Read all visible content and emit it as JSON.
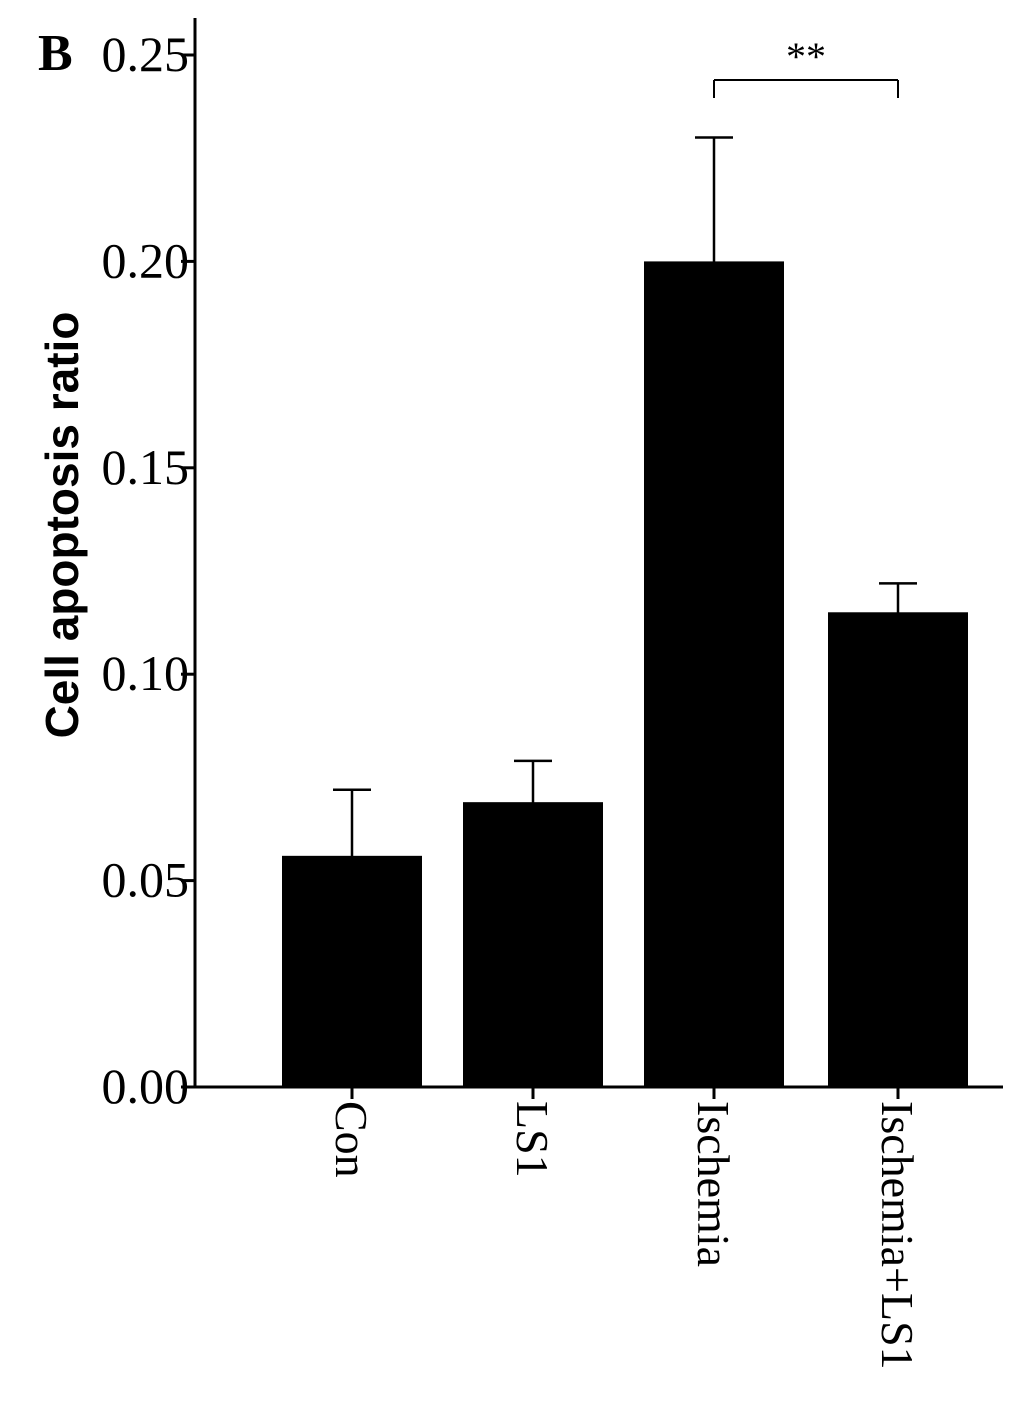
{
  "panel_label": "B",
  "chart_data": {
    "type": "bar",
    "title": "",
    "xlabel": "",
    "ylabel": "Cell apoptosis ratio",
    "ylim": [
      0,
      0.25
    ],
    "yticks": [
      "0.00",
      "0.05",
      "0.10",
      "0.15",
      "0.20",
      "0.25"
    ],
    "categories": [
      "Con",
      "LS1",
      "Ischemia",
      "Ischemia+LS1"
    ],
    "values": [
      0.056,
      0.069,
      0.2,
      0.115
    ],
    "error_upper": [
      0.016,
      0.01,
      0.03,
      0.007
    ],
    "bar_color": "#000000",
    "grid": false,
    "legend": "none",
    "annotations": [
      {
        "text": "**",
        "from_category": "Ischemia",
        "to_category": "Ischemia+LS1"
      }
    ]
  }
}
